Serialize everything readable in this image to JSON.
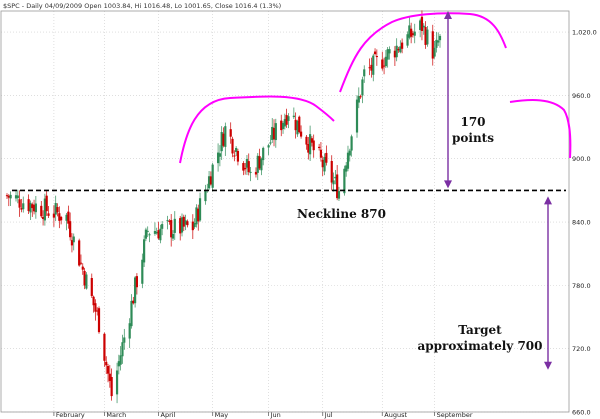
{
  "chart_data": {
    "type": "candlestick",
    "title": "$SPC - Daily 04/09/2009 Open 1003.84, Hi 1016.48, Lo 1001.65, Close 1016.4 (1.3%)",
    "ylim": [
      660,
      1040
    ],
    "y_ticks": [
      "1,020.0",
      "960.0",
      "900.0",
      "840.0",
      "780.0",
      "720.0",
      "660.0"
    ],
    "y_tick_values": [
      1020,
      960,
      900,
      840,
      780,
      720,
      660
    ],
    "x_range": [
      "2009-01-07",
      "2009-09-04"
    ],
    "x_ticks": [
      {
        "label": "February",
        "date": "2009-02-02"
      },
      {
        "label": "March",
        "date": "2009-03-02"
      },
      {
        "label": "April",
        "date": "2009-04-01"
      },
      {
        "label": "May",
        "date": "2009-05-01"
      },
      {
        "label": "Jun",
        "date": "2009-06-01"
      },
      {
        "label": "Jul",
        "date": "2009-07-01"
      },
      {
        "label": "August",
        "date": "2009-08-03"
      },
      {
        "label": "September",
        "date": "2009-09-01"
      }
    ],
    "grid": true,
    "colors": {
      "up": "#2e8b57",
      "down": "#cc0000",
      "arcs": "#ff00ff",
      "arrows": "#7b2fa3",
      "grid": "#cccccc",
      "neckline": "#000000"
    },
    "key_prices": [
      {
        "date": "2009-01-07",
        "price": 865
      },
      {
        "date": "2009-02-09",
        "price": 845
      },
      {
        "date": "2009-02-27",
        "price": 745
      },
      {
        "date": "2009-03-06",
        "price": 676
      },
      {
        "date": "2009-03-26",
        "price": 832
      },
      {
        "date": "2009-04-20",
        "price": 835
      },
      {
        "date": "2009-05-08",
        "price": 928
      },
      {
        "date": "2009-05-22",
        "price": 885
      },
      {
        "date": "2009-06-12",
        "price": 946
      },
      {
        "date": "2009-07-10",
        "price": 870
      },
      {
        "date": "2009-07-24",
        "price": 980
      },
      {
        "date": "2009-08-25",
        "price": 1026
      },
      {
        "date": "2009-09-01",
        "price": 999
      },
      {
        "date": "2009-09-04",
        "price": 1016.4
      }
    ],
    "neckline": {
      "value": 870,
      "label": "Neckline 870"
    },
    "annotations": [
      {
        "text_line1": "170",
        "text_line2": "points",
        "from": 1040,
        "to": 870
      },
      {
        "text_line1": "Target",
        "text_line2": "approximately 700",
        "from": 870,
        "to": 700
      }
    ]
  }
}
